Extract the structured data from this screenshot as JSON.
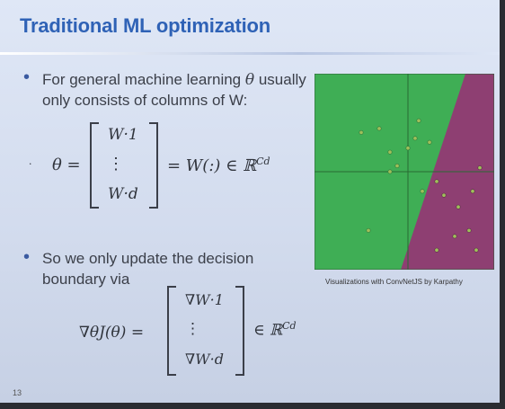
{
  "slide": {
    "title": "Traditional ML optimization",
    "bullet1_line1_prefix": "For general machine learning",
    "bullet1_theta": "θ",
    "bullet1_line1_suffix": "usually",
    "bullet1_line2": "only consists of columns of W:",
    "eq1": {
      "lhs": "θ =",
      "top": "W·1",
      "dots": "⋮",
      "bottom": "W·d",
      "rhs": "= W(:) ∈ ℝ",
      "rhs_sup": "Cd"
    },
    "bullet2_line1": "So we only update the decision",
    "bullet2_line2": "boundary via",
    "eq2": {
      "lhs": "∇θJ(θ) =",
      "top": "∇W·1",
      "dots": "⋮",
      "bottom": "∇W·d",
      "rhs": "∈ ℝ",
      "rhs_sup": "Cd"
    },
    "caption": "Visualizations with ConvNetJS by Karpathy",
    "page_number": "13"
  },
  "colors": {
    "title": "#2f62b6",
    "green_region": "#3fae55",
    "purple_region": "#8e3f72",
    "points": "#9fbf5a"
  },
  "visualization": {
    "axes": {
      "x_line": 0.52,
      "y_line": 0.5
    },
    "green_points": [
      [
        0.26,
        0.3
      ],
      [
        0.36,
        0.28
      ],
      [
        0.42,
        0.4
      ],
      [
        0.42,
        0.5
      ],
      [
        0.46,
        0.47
      ],
      [
        0.52,
        0.38
      ],
      [
        0.56,
        0.33
      ],
      [
        0.58,
        0.24
      ],
      [
        0.64,
        0.35
      ],
      [
        0.3,
        0.8
      ],
      [
        0.6,
        0.6
      ]
    ],
    "purple_points": [
      [
        0.68,
        0.55
      ],
      [
        0.72,
        0.62
      ],
      [
        0.8,
        0.68
      ],
      [
        0.88,
        0.6
      ],
      [
        0.92,
        0.48
      ],
      [
        0.86,
        0.8
      ],
      [
        0.78,
        0.83
      ],
      [
        0.9,
        0.9
      ],
      [
        0.68,
        0.9
      ]
    ]
  }
}
